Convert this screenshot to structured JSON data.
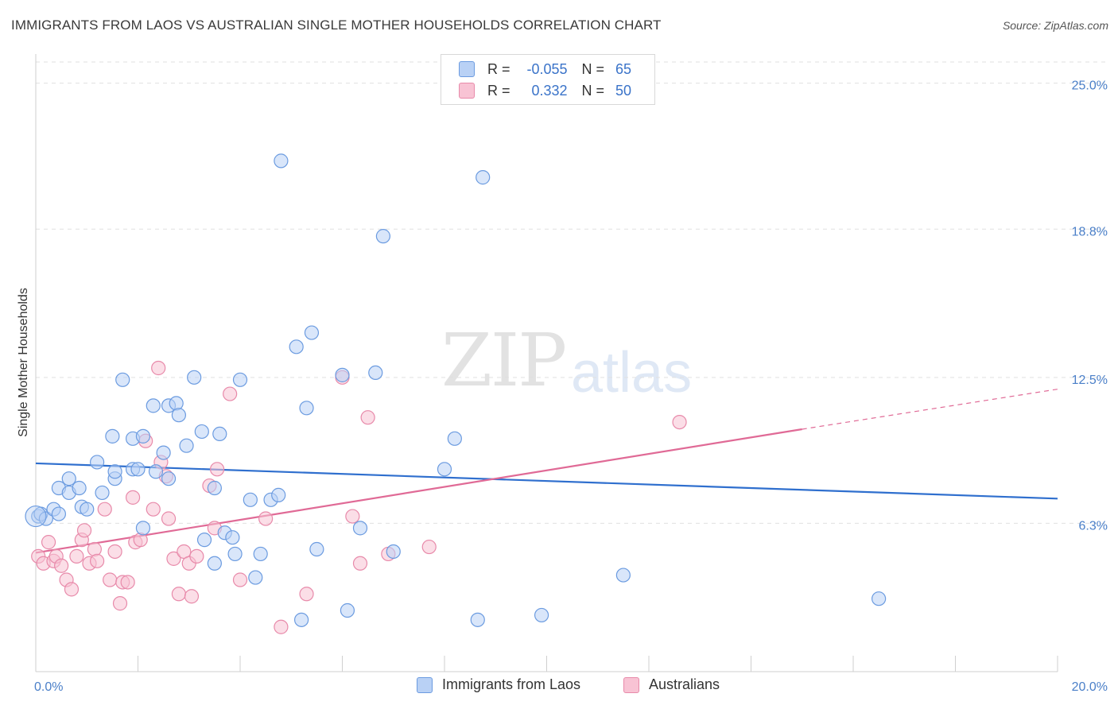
{
  "title": "IMMIGRANTS FROM LAOS VS AUSTRALIAN SINGLE MOTHER HOUSEHOLDS CORRELATION CHART",
  "source": "Source: ZipAtlas.com",
  "watermark": {
    "zip": "ZIP",
    "atlas": "atlas"
  },
  "legend_top": [
    {
      "r_label": "R =",
      "r_value": "-0.055",
      "n_label": "N =",
      "n_value": "65"
    },
    {
      "r_label": "R =",
      "r_value": "0.332",
      "n_label": "N =",
      "n_value": "50"
    }
  ],
  "colors": {
    "blue_fill": "#b9d1f5",
    "blue_stroke": "#6b9be0",
    "blue_line": "#2f6fce",
    "pink_fill": "#f8c3d4",
    "pink_stroke": "#e88aaa",
    "pink_line": "#e06a96",
    "tick_text": "#4a7fc8",
    "grid": "#e0e0e0"
  },
  "chart_data": {
    "type": "scatter",
    "title": "IMMIGRANTS FROM LAOS VS AUSTRALIAN SINGLE MOTHER HOUSEHOLDS CORRELATION CHART",
    "xlabel": "",
    "ylabel": "Single Mother Households",
    "xlim": [
      0,
      20
    ],
    "ylim": [
      0,
      25.9
    ],
    "x_tick_labels": [
      "0.0%",
      "20.0%"
    ],
    "y_ticks": [
      6.3,
      12.5,
      18.8,
      25.0
    ],
    "y_tick_labels": [
      "6.3%",
      "12.5%",
      "18.8%",
      "25.0%"
    ],
    "grid": true,
    "legend_position": "bottom-center",
    "series": [
      {
        "name": "Immigrants from Laos",
        "r": -0.055,
        "n": 65,
        "trend": {
          "x": [
            0,
            20
          ],
          "y": [
            8.85,
            7.35
          ]
        },
        "points": [
          [
            0.05,
            6.6
          ],
          [
            0.1,
            6.7
          ],
          [
            0.2,
            6.5
          ],
          [
            0.35,
            6.9
          ],
          [
            0.45,
            6.7
          ],
          [
            0.45,
            7.8
          ],
          [
            0.65,
            8.2
          ],
          [
            0.65,
            7.6
          ],
          [
            0.85,
            7.8
          ],
          [
            0.9,
            7.0
          ],
          [
            1.0,
            6.9
          ],
          [
            1.2,
            8.9
          ],
          [
            1.3,
            7.6
          ],
          [
            1.5,
            10.0
          ],
          [
            1.55,
            8.2
          ],
          [
            1.55,
            8.5
          ],
          [
            1.7,
            12.4
          ],
          [
            1.9,
            8.6
          ],
          [
            1.9,
            9.9
          ],
          [
            2.0,
            8.6
          ],
          [
            2.1,
            10.0
          ],
          [
            2.1,
            6.1
          ],
          [
            2.3,
            11.3
          ],
          [
            2.35,
            8.5
          ],
          [
            2.5,
            9.3
          ],
          [
            2.6,
            11.3
          ],
          [
            2.6,
            8.2
          ],
          [
            2.75,
            11.4
          ],
          [
            2.8,
            10.9
          ],
          [
            2.95,
            9.6
          ],
          [
            3.1,
            12.5
          ],
          [
            3.25,
            10.2
          ],
          [
            3.3,
            5.6
          ],
          [
            3.5,
            4.6
          ],
          [
            3.5,
            7.8
          ],
          [
            3.6,
            10.1
          ],
          [
            3.7,
            5.9
          ],
          [
            3.85,
            5.7
          ],
          [
            3.9,
            5.0
          ],
          [
            4.0,
            12.4
          ],
          [
            4.2,
            7.3
          ],
          [
            4.3,
            4.0
          ],
          [
            4.4,
            5.0
          ],
          [
            4.6,
            7.3
          ],
          [
            4.75,
            7.5
          ],
          [
            4.8,
            21.7
          ],
          [
            5.1,
            13.8
          ],
          [
            5.2,
            2.2
          ],
          [
            5.3,
            11.2
          ],
          [
            5.4,
            14.4
          ],
          [
            5.5,
            5.2
          ],
          [
            6.0,
            12.6
          ],
          [
            6.1,
            2.6
          ],
          [
            6.35,
            6.1
          ],
          [
            6.65,
            12.7
          ],
          [
            6.8,
            18.5
          ],
          [
            7.0,
            5.1
          ],
          [
            8.0,
            8.6
          ],
          [
            8.2,
            9.9
          ],
          [
            8.65,
            2.2
          ],
          [
            8.75,
            21.0
          ],
          [
            9.9,
            2.4
          ],
          [
            11.5,
            4.1
          ],
          [
            16.5,
            3.1
          ],
          [
            0.0,
            6.6
          ]
        ]
      },
      {
        "name": "Australians",
        "r": 0.332,
        "n": 50,
        "trend_solid": {
          "x": [
            0,
            15
          ],
          "y": [
            5.05,
            10.3
          ]
        },
        "trend_dashed": {
          "x": [
            15,
            20
          ],
          "y": [
            10.3,
            12.0
          ]
        },
        "points": [
          [
            0.05,
            4.9
          ],
          [
            0.15,
            4.6
          ],
          [
            0.25,
            5.5
          ],
          [
            0.35,
            4.7
          ],
          [
            0.4,
            4.9
          ],
          [
            0.5,
            4.5
          ],
          [
            0.6,
            3.9
          ],
          [
            0.7,
            3.5
          ],
          [
            0.8,
            4.9
          ],
          [
            0.9,
            5.6
          ],
          [
            0.95,
            6.0
          ],
          [
            1.05,
            4.6
          ],
          [
            1.15,
            5.2
          ],
          [
            1.2,
            4.7
          ],
          [
            1.35,
            6.9
          ],
          [
            1.45,
            3.9
          ],
          [
            1.55,
            5.1
          ],
          [
            1.65,
            2.9
          ],
          [
            1.7,
            3.8
          ],
          [
            1.8,
            3.8
          ],
          [
            1.9,
            7.4
          ],
          [
            1.95,
            5.5
          ],
          [
            2.05,
            5.6
          ],
          [
            2.15,
            9.8
          ],
          [
            2.3,
            6.9
          ],
          [
            2.4,
            12.9
          ],
          [
            2.45,
            8.9
          ],
          [
            2.55,
            8.3
          ],
          [
            2.6,
            6.5
          ],
          [
            2.7,
            4.8
          ],
          [
            2.8,
            3.3
          ],
          [
            2.9,
            5.1
          ],
          [
            3.0,
            4.6
          ],
          [
            3.05,
            3.2
          ],
          [
            3.15,
            4.9
          ],
          [
            3.4,
            7.9
          ],
          [
            3.5,
            6.1
          ],
          [
            3.55,
            8.6
          ],
          [
            3.8,
            11.8
          ],
          [
            4.0,
            3.9
          ],
          [
            4.5,
            6.5
          ],
          [
            4.8,
            1.9
          ],
          [
            5.3,
            3.3
          ],
          [
            6.0,
            12.5
          ],
          [
            6.2,
            6.6
          ],
          [
            6.35,
            4.6
          ],
          [
            6.5,
            10.8
          ],
          [
            6.9,
            5.0
          ],
          [
            7.7,
            5.3
          ],
          [
            12.6,
            10.6
          ]
        ]
      }
    ]
  },
  "legend_bottom": [
    "Immigrants from Laos",
    "Australians"
  ]
}
